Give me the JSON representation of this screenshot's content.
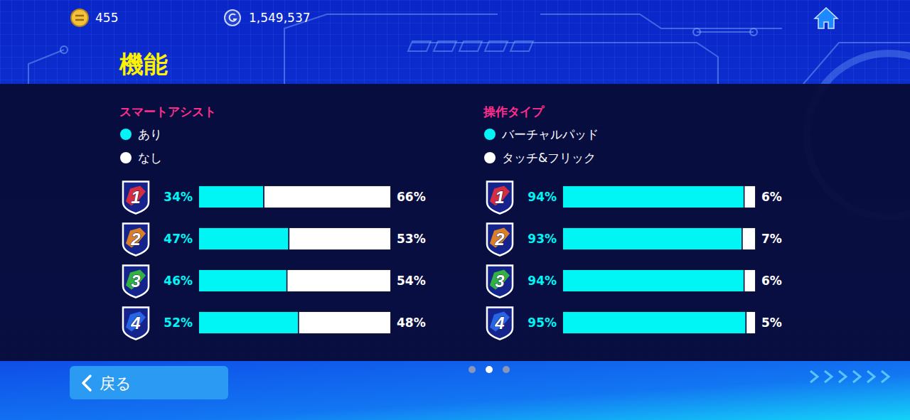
{
  "header": {
    "coins": "455",
    "gems": "1,549,537",
    "title": "機能"
  },
  "chart_data": [
    {
      "type": "bar",
      "orientation": "horizontal",
      "stacked": true,
      "title": "スマートアシスト",
      "categories": [
        "1",
        "2",
        "3",
        "4"
      ],
      "series": [
        {
          "name": "あり",
          "color": "#00f5f5",
          "values": [
            34,
            47,
            46,
            52
          ],
          "value_labels": [
            "34%",
            "47%",
            "46%",
            "52%"
          ]
        },
        {
          "name": "なし",
          "color": "#ffffff",
          "values": [
            66,
            53,
            54,
            48
          ],
          "value_labels": [
            "66%",
            "53%",
            "54%",
            "48%"
          ]
        }
      ],
      "xlim": [
        0,
        100
      ],
      "tick_labels": "y",
      "data_labels": true,
      "legend": "top-left"
    },
    {
      "type": "bar",
      "orientation": "horizontal",
      "stacked": true,
      "title": "操作タイプ",
      "categories": [
        "1",
        "2",
        "3",
        "4"
      ],
      "series": [
        {
          "name": "バーチャルパッド",
          "color": "#00f5f5",
          "values": [
            94,
            93,
            94,
            95
          ],
          "value_labels": [
            "94%",
            "93%",
            "94%",
            "95%"
          ]
        },
        {
          "name": "タッチ&フリック",
          "color": "#ffffff",
          "values": [
            6,
            7,
            6,
            5
          ],
          "value_labels": [
            "6%",
            "7%",
            "6%",
            "5%"
          ]
        }
      ],
      "xlim": [
        0,
        100
      ],
      "tick_labels": "y",
      "data_labels": true,
      "legend": "top-left"
    }
  ],
  "footer": {
    "back_button": "戻る"
  }
}
